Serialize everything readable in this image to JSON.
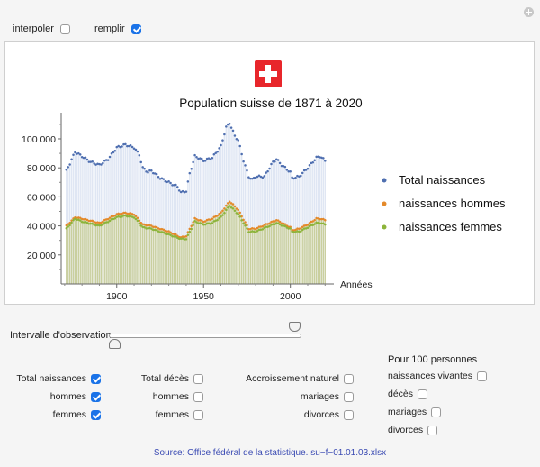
{
  "top_controls": {
    "interpoler_label": "interpoler",
    "interpoler_checked": false,
    "remplir_label": "remplir",
    "remplir_checked": true
  },
  "colors": {
    "total": "#4f6fb0",
    "hommes": "#e4892a",
    "femmes": "#8cb43a",
    "fill_total": "#dfe6f3",
    "fill_hf": "#c9cf9e",
    "flag_red": "#e8262b",
    "checkbox_on": "#1a73e8"
  },
  "slider": {
    "label": "Intervalle d'observation",
    "start_year": 1871,
    "end_year": 2020
  },
  "groups": {
    "naissances": [
      {
        "label": "Total naissances",
        "checked": true
      },
      {
        "label": "hommes",
        "checked": true
      },
      {
        "label": "femmes",
        "checked": true
      }
    ],
    "deces": [
      {
        "label": "Total décès",
        "checked": false
      },
      {
        "label": "hommes",
        "checked": false
      },
      {
        "label": "femmes",
        "checked": false
      }
    ],
    "accroissement": [
      {
        "label": "Accroissement naturel",
        "checked": false
      },
      {
        "label": "mariages",
        "checked": false
      },
      {
        "label": "divorces",
        "checked": false
      }
    ],
    "pour100": {
      "header": "Pour 100 personnes",
      "items": [
        {
          "label": "naissances vivantes",
          "checked": false
        },
        {
          "label": "décès",
          "checked": false
        },
        {
          "label": "mariages",
          "checked": false
        },
        {
          "label": "divorces",
          "checked": false
        }
      ]
    }
  },
  "source": "Source: Office fédéral de la statistique. su−f−01.01.03.xlsx",
  "chart_data": {
    "type": "area",
    "title": "Population suisse de 1871 à 2020",
    "xlabel": "Années",
    "ylabel": "",
    "x_ticks": [
      1900,
      1950,
      2000
    ],
    "y_ticks": [
      20000,
      40000,
      60000,
      80000,
      100000
    ],
    "y_tick_labels": [
      "20 000",
      "40 000",
      "60 000",
      "80 000",
      "100 000"
    ],
    "xlim": [
      1868,
      2024
    ],
    "ylim": [
      0,
      118000
    ],
    "legend_position": "right",
    "series_keypoints": [
      {
        "name": "Total naissances",
        "points": [
          [
            1871,
            78000
          ],
          [
            1873,
            83000
          ],
          [
            1876,
            91000
          ],
          [
            1880,
            88000
          ],
          [
            1885,
            84000
          ],
          [
            1890,
            82000
          ],
          [
            1895,
            86000
          ],
          [
            1900,
            94000
          ],
          [
            1905,
            96000
          ],
          [
            1910,
            94000
          ],
          [
            1913,
            89000
          ],
          [
            1915,
            80000
          ],
          [
            1918,
            77000
          ],
          [
            1920,
            78000
          ],
          [
            1925,
            73000
          ],
          [
            1930,
            70000
          ],
          [
            1935,
            67000
          ],
          [
            1937,
            63000
          ],
          [
            1940,
            64000
          ],
          [
            1942,
            76000
          ],
          [
            1945,
            88000
          ],
          [
            1947,
            87000
          ],
          [
            1950,
            85000
          ],
          [
            1955,
            87000
          ],
          [
            1960,
            95000
          ],
          [
            1963,
            108000
          ],
          [
            1965,
            111000
          ],
          [
            1968,
            102000
          ],
          [
            1970,
            99000
          ],
          [
            1973,
            85000
          ],
          [
            1976,
            74000
          ],
          [
            1978,
            72000
          ],
          [
            1980,
            74000
          ],
          [
            1985,
            74000
          ],
          [
            1990,
            84000
          ],
          [
            1992,
            86000
          ],
          [
            1995,
            82000
          ],
          [
            2000,
            77000
          ],
          [
            2001,
            73000
          ],
          [
            2005,
            74000
          ],
          [
            2010,
            80000
          ],
          [
            2015,
            87000
          ],
          [
            2017,
            88000
          ],
          [
            2019,
            86000
          ],
          [
            2020,
            85000
          ]
        ]
      },
      {
        "name": "naissances hommes",
        "points": [
          [
            1871,
            40000
          ],
          [
            1876,
            46000
          ],
          [
            1880,
            45000
          ],
          [
            1890,
            42000
          ],
          [
            1900,
            48000
          ],
          [
            1905,
            49000
          ],
          [
            1910,
            48000
          ],
          [
            1915,
            41000
          ],
          [
            1920,
            40000
          ],
          [
            1930,
            36000
          ],
          [
            1937,
            32000
          ],
          [
            1940,
            33000
          ],
          [
            1945,
            45000
          ],
          [
            1950,
            43000
          ],
          [
            1955,
            45000
          ],
          [
            1960,
            49000
          ],
          [
            1965,
            57000
          ],
          [
            1970,
            51000
          ],
          [
            1976,
            38000
          ],
          [
            1980,
            38000
          ],
          [
            1990,
            43000
          ],
          [
            1992,
            44000
          ],
          [
            2000,
            39000
          ],
          [
            2001,
            37000
          ],
          [
            2005,
            38000
          ],
          [
            2010,
            41000
          ],
          [
            2015,
            45000
          ],
          [
            2017,
            45000
          ],
          [
            2020,
            44000
          ]
        ]
      },
      {
        "name": "naissances femmes",
        "points": [
          [
            1871,
            38000
          ],
          [
            1876,
            45000
          ],
          [
            1880,
            43000
          ],
          [
            1890,
            40000
          ],
          [
            1900,
            46000
          ],
          [
            1905,
            47000
          ],
          [
            1910,
            46000
          ],
          [
            1915,
            39000
          ],
          [
            1920,
            38000
          ],
          [
            1930,
            34000
          ],
          [
            1937,
            31000
          ],
          [
            1940,
            31000
          ],
          [
            1945,
            43000
          ],
          [
            1950,
            41000
          ],
          [
            1955,
            42000
          ],
          [
            1960,
            46000
          ],
          [
            1965,
            54000
          ],
          [
            1970,
            48000
          ],
          [
            1976,
            36000
          ],
          [
            1980,
            36000
          ],
          [
            1990,
            41000
          ],
          [
            1992,
            42000
          ],
          [
            2000,
            38000
          ],
          [
            2001,
            36000
          ],
          [
            2005,
            36000
          ],
          [
            2010,
            39000
          ],
          [
            2015,
            42000
          ],
          [
            2017,
            42000
          ],
          [
            2020,
            41000
          ]
        ]
      }
    ]
  }
}
